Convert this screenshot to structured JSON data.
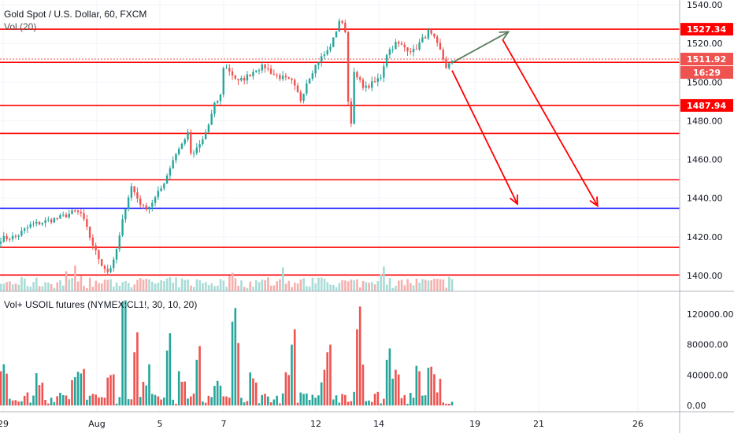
{
  "header": {
    "title": "Gold Spot / U.S. Dollar, 60, FXCM",
    "vol_label": "Vol (20)",
    "indicator_label": "Vol+ USOIL futures (NYMEX:CL1!, 30, 10, 20)"
  },
  "colors": {
    "up": "#26a69a",
    "down": "#ef5350",
    "line_red": "#ff0000",
    "line_blue": "#0000ff",
    "arrow_up": "#5f7f5f",
    "grid": "#f0f3fa",
    "axis": "#b2b5be"
  },
  "chart_data": [
    {
      "type": "candlestick",
      "title": "Gold Spot / U.S. Dollar, 60, FXCM",
      "x_tick_labels": [
        "29",
        "Aug",
        "5",
        "7",
        "12",
        "14",
        "19",
        "21",
        "26"
      ],
      "y_ticks": [
        1400,
        1420,
        1440,
        1460,
        1480,
        1500,
        1520,
        1540
      ],
      "y_tick_labels": [
        "1400.00",
        "1420.00",
        "1440.00",
        "1460.00",
        "1480.00",
        "1500.00",
        "1520.00",
        "1540.00"
      ],
      "ylim": [
        1393,
        1542
      ],
      "price_path": [
        [
          0,
          1419
        ],
        [
          5,
          1420
        ],
        [
          10,
          1426
        ],
        [
          15,
          1428
        ],
        [
          20,
          1430
        ],
        [
          25,
          1433
        ],
        [
          27,
          1432
        ],
        [
          30,
          1420
        ],
        [
          32,
          1412
        ],
        [
          34,
          1406
        ],
        [
          36,
          1402
        ],
        [
          38,
          1407
        ],
        [
          40,
          1420
        ],
        [
          42,
          1436
        ],
        [
          44,
          1446
        ],
        [
          46,
          1440
        ],
        [
          48,
          1435
        ],
        [
          50,
          1436
        ],
        [
          52,
          1440
        ],
        [
          54,
          1445
        ],
        [
          56,
          1452
        ],
        [
          58,
          1460
        ],
        [
          60,
          1466
        ],
        [
          62,
          1470
        ],
        [
          63,
          1475
        ],
        [
          64,
          1462
        ],
        [
          66,
          1465
        ],
        [
          68,
          1470
        ],
        [
          70,
          1478
        ],
        [
          72,
          1488
        ],
        [
          74,
          1493
        ],
        [
          75,
          1508
        ],
        [
          77,
          1506
        ],
        [
          80,
          1500
        ],
        [
          83,
          1503
        ],
        [
          86,
          1507
        ],
        [
          89,
          1508
        ],
        [
          92,
          1504
        ],
        [
          95,
          1502
        ],
        [
          98,
          1500
        ],
        [
          101,
          1491
        ],
        [
          103,
          1500
        ],
        [
          105,
          1506
        ],
        [
          107,
          1511
        ],
        [
          110,
          1516
        ],
        [
          112,
          1522
        ],
        [
          114,
          1532
        ],
        [
          116,
          1527
        ],
        [
          117,
          1490
        ],
        [
          118,
          1480
        ],
        [
          119,
          1504
        ],
        [
          121,
          1500
        ],
        [
          123,
          1497
        ],
        [
          126,
          1500
        ],
        [
          128,
          1503
        ],
        [
          130,
          1515
        ],
        [
          133,
          1520
        ],
        [
          136,
          1518
        ],
        [
          139,
          1516
        ],
        [
          142,
          1522
        ],
        [
          144,
          1526
        ],
        [
          146,
          1522
        ],
        [
          148,
          1516
        ],
        [
          150,
          1508
        ],
        [
          152,
          1510
        ]
      ],
      "candle_count": 153,
      "last_price": "1511.92",
      "countdown": "16:29"
    },
    {
      "type": "bar",
      "name": "Vol (20)"
    },
    {
      "type": "bar",
      "title": "Vol+ USOIL futures (NYMEX:CL1!, 30, 10, 20)",
      "y_ticks": [
        0,
        40000,
        80000,
        120000
      ],
      "y_tick_labels": [
        "0.00",
        "40000.00",
        "80000.00",
        "120000.00"
      ],
      "ylim": [
        -3000,
        140000
      ]
    }
  ],
  "levels": [
    {
      "price": 1527.34,
      "color": "#ff0000",
      "label": "1527.34"
    },
    {
      "price": 1510.2,
      "color": "#ff0000",
      "label": ""
    },
    {
      "price": 1487.94,
      "color": "#ff0000",
      "label": "1487.94"
    },
    {
      "price": 1473.5,
      "color": "#ff0000",
      "label": ""
    },
    {
      "price": 1449.5,
      "color": "#ff0000",
      "label": ""
    },
    {
      "price": 1434.8,
      "color": "#0000ff",
      "label": ""
    },
    {
      "price": 1414.6,
      "color": "#ff0000",
      "label": ""
    },
    {
      "price": 1400.3,
      "color": "#ff0000",
      "label": ""
    }
  ],
  "arrows": [
    {
      "from": [
        152,
        1510
      ],
      "to": [
        171,
        1526
      ],
      "color": "#5f7f5f"
    },
    {
      "from": [
        152,
        1506
      ],
      "to": [
        174,
        1437
      ],
      "color": "#ff0000"
    },
    {
      "from": [
        169,
        1522
      ],
      "to": [
        201,
        1436
      ],
      "color": "#ff0000"
    }
  ]
}
